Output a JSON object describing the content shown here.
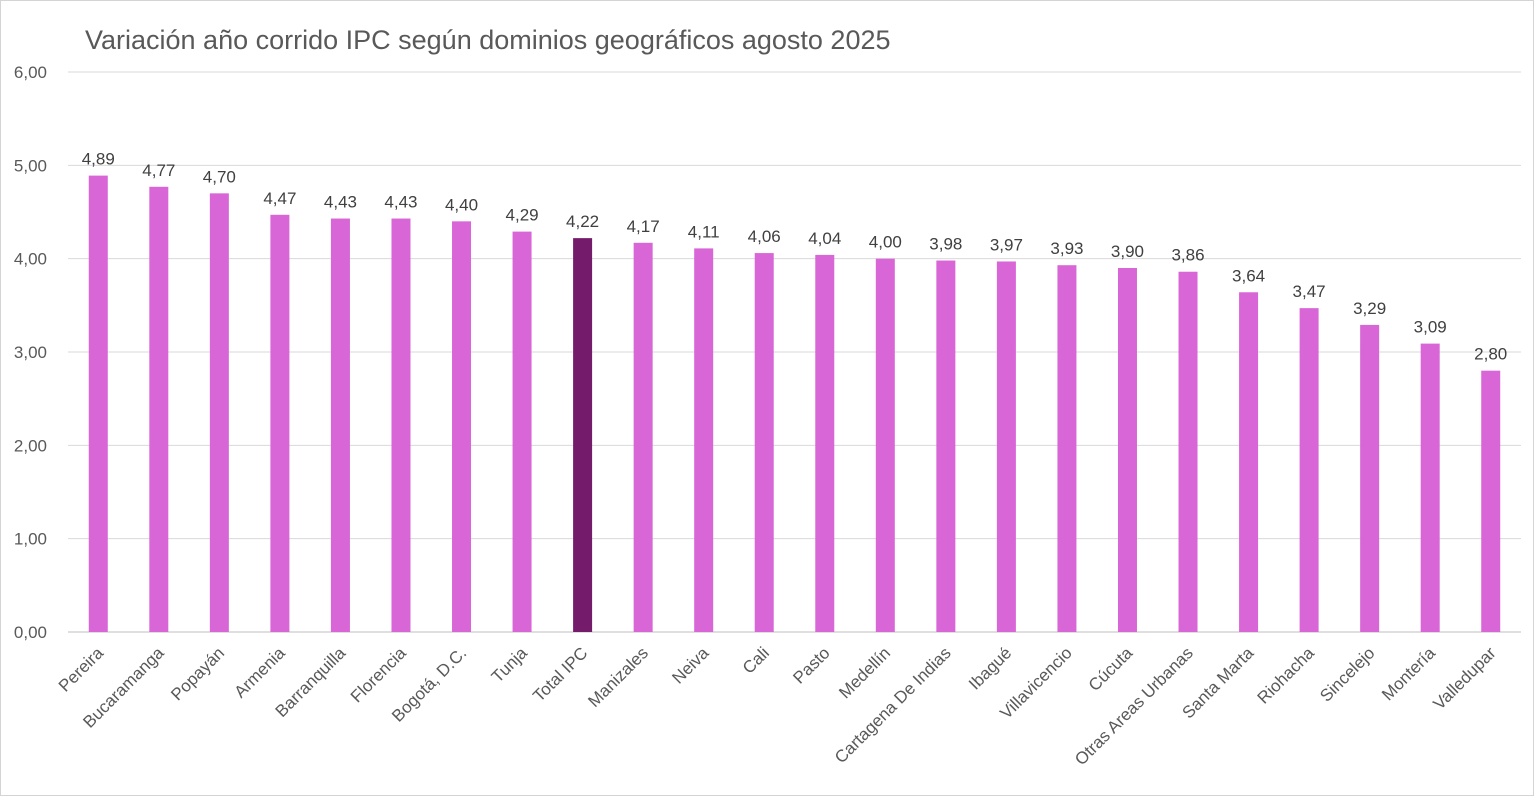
{
  "chart_data": {
    "type": "bar",
    "title": "Variación año corrido IPC según dominios geográficos agosto 2025",
    "categories": [
      "Pereira",
      "Bucaramanga",
      "Popayán",
      "Armenia",
      "Barranquilla",
      "Florencia",
      "Bogotá, D.C.",
      "Tunja",
      "Total IPC",
      "Manizales",
      "Neiva",
      "Cali",
      "Pasto",
      "Medellín",
      "Cartagena De Indias",
      "Ibagué",
      "Villavicencio",
      "Cúcuta",
      "Otras Areas Urbanas",
      "Santa Marta",
      "Riohacha",
      "Sincelejo",
      "Montería",
      "Valledupar"
    ],
    "values": [
      4.89,
      4.77,
      4.7,
      4.47,
      4.43,
      4.43,
      4.4,
      4.29,
      4.22,
      4.17,
      4.11,
      4.06,
      4.04,
      4.0,
      3.98,
      3.97,
      3.93,
      3.9,
      3.86,
      3.64,
      3.47,
      3.29,
      3.09,
      2.8
    ],
    "data_labels": [
      "4,89",
      "4,77",
      "4,70",
      "4,47",
      "4,43",
      "4,43",
      "4,40",
      "4,29",
      "4,22",
      "4,17",
      "4,11",
      "4,06",
      "4,04",
      "4,00",
      "3,98",
      "3,97",
      "3,93",
      "3,90",
      "3,86",
      "3,64",
      "3,47",
      "3,29",
      "3,09",
      "2,80"
    ],
    "highlight_category": "Total IPC",
    "colors": {
      "bar": "#d966d6",
      "highlight": "#741b6c",
      "grid": "#d9d9d9",
      "axis": "#bfbfbf",
      "text": "#595959"
    },
    "ylim": [
      0,
      6
    ],
    "yticks": [
      "0,00",
      "1,00",
      "2,00",
      "3,00",
      "4,00",
      "5,00",
      "6,00"
    ],
    "xlabel": "",
    "ylabel": "",
    "grid": true,
    "legend": "none"
  }
}
